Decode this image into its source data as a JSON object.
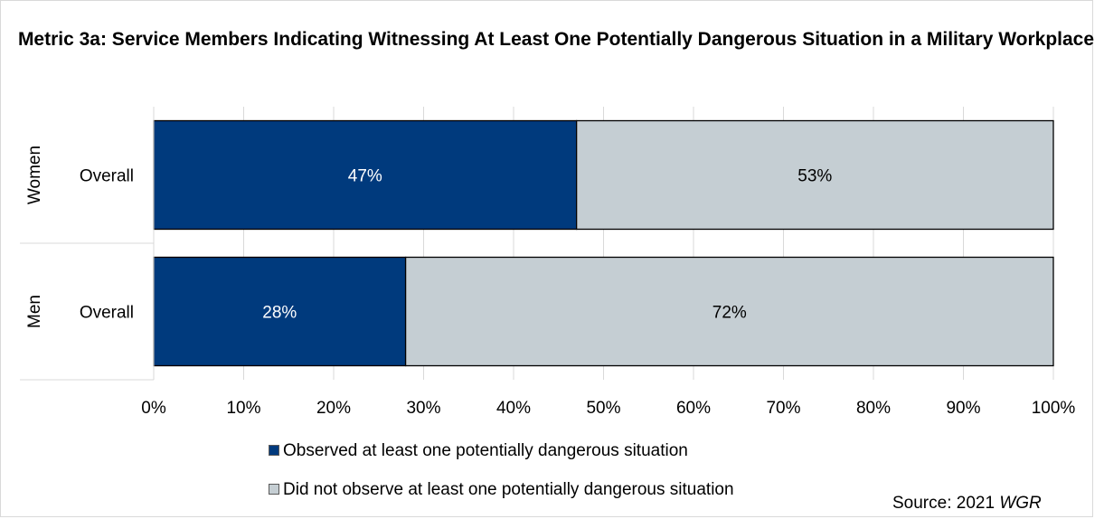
{
  "chart_data": {
    "type": "bar",
    "orientation": "horizontal",
    "stacked": true,
    "title": "Metric 3a: Service Members Indicating Witnessing At Least One Potentially Dangerous Situation in a Military Workplace",
    "groups": [
      "Women",
      "Men"
    ],
    "categories": [
      "Overall",
      "Overall"
    ],
    "series": [
      {
        "name": "Observed at least one potentially dangerous situation",
        "values": [
          47,
          28
        ],
        "labels": [
          "47%",
          "28%"
        ],
        "color": "#003a7d"
      },
      {
        "name": "Did not observe at least one potentially dangerous situation",
        "values": [
          53,
          72
        ],
        "labels": [
          "53%",
          "72%"
        ],
        "color": "#c5ced3"
      }
    ],
    "xlim": [
      0,
      100
    ],
    "xticks": [
      "0%",
      "10%",
      "20%",
      "30%",
      "40%",
      "50%",
      "60%",
      "70%",
      "80%",
      "90%",
      "100%"
    ],
    "grid": true,
    "legend_position": "bottom"
  },
  "source": {
    "prefix": "Source: 2021 ",
    "emphasis": "WGR"
  }
}
